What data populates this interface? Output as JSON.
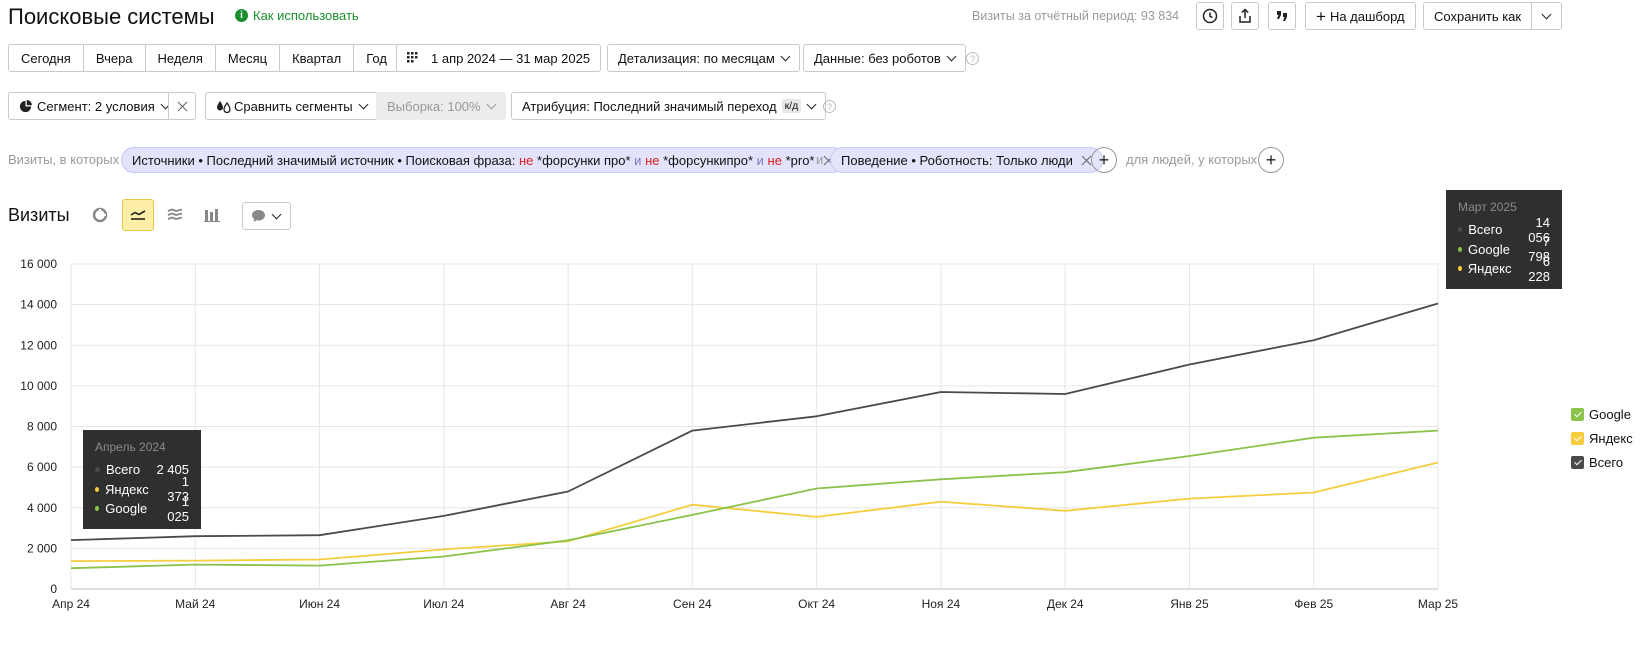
{
  "header": {
    "title": "Поисковые системы",
    "how_to_use": "Как использовать",
    "visits_period_label": "Визиты за отчётный период:",
    "visits_period_value": "93 834",
    "dashboard_button": "На дашборд",
    "save_as_button": "Сохранить как"
  },
  "period": {
    "tabs": [
      "Сегодня",
      "Вчера",
      "Неделя",
      "Месяц",
      "Квартал",
      "Год"
    ],
    "date_range": "1 апр 2024 — 31 мар 2025",
    "detalization": "Детализация: по месяцам",
    "data_filter": "Данные: без роботов"
  },
  "segments": {
    "segment": "Сегмент: 2 условия",
    "compare": "Сравнить сегменты",
    "sample": "Выборка: 100%",
    "attribution": "Атрибуция: Последний значимый переход",
    "attribution_badge": "к/д"
  },
  "filters": {
    "prefix": "Визиты, в которых",
    "pill1": {
      "part1": "Источники • Последний значимый источник • Поисковая фраза:",
      "ne1": "не",
      "v1": "*форсунки про*",
      "and1": "и",
      "ne2": "не",
      "v2": "*форсункипро*",
      "and2": "и",
      "ne3": "не",
      "v3": "*pro*"
    },
    "and_word": "и",
    "pill2": "Поведение • Роботность: Только люди",
    "people_suffix": "для людей, у которых"
  },
  "chart_section": {
    "title": "Визиты"
  },
  "tooltips": {
    "left": {
      "title": "Апрель 2024",
      "rows": [
        {
          "name": "Всего",
          "value": "2 405"
        },
        {
          "name": "Яндекс",
          "value": "1 373"
        },
        {
          "name": "Google",
          "value": "1 025"
        }
      ]
    },
    "right": {
      "title": "Март 2025",
      "rows": [
        {
          "name": "Всего",
          "value": "14 056"
        },
        {
          "name": "Google",
          "value": "7 798"
        },
        {
          "name": "Яндекс",
          "value": "6 228"
        }
      ]
    }
  },
  "colors": {
    "total": "#4a4a4a",
    "google": "#8bc34a",
    "yandex": "#f6cd3f",
    "active_icon_bg": "#fdeea8"
  },
  "chart_data": {
    "type": "line",
    "categories": [
      "Апр 24",
      "Май 24",
      "Июн 24",
      "Июл 24",
      "Авг 24",
      "Сен 24",
      "Окт 24",
      "Ноя 24",
      "Дек 24",
      "Янв 25",
      "Фев 25",
      "Мар 25"
    ],
    "ylim": [
      0,
      16000
    ],
    "yticks": [
      "0",
      "2 000",
      "4 000",
      "6 000",
      "8 000",
      "10 000",
      "12 000",
      "14 000",
      "16 000"
    ],
    "grid": true,
    "legend_position": "right",
    "series": [
      {
        "name": "Всего",
        "values": [
          2405,
          2600,
          2650,
          3600,
          4800,
          7800,
          8500,
          9700,
          9600,
          11050,
          12250,
          14056
        ]
      },
      {
        "name": "Google",
        "values": [
          1025,
          1200,
          1150,
          1600,
          2400,
          3650,
          4950,
          5400,
          5750,
          6550,
          7450,
          7798
        ]
      },
      {
        "name": "Яндекс",
        "values": [
          1373,
          1400,
          1450,
          1950,
          2350,
          4150,
          3550,
          4300,
          3850,
          4450,
          4750,
          6228
        ]
      }
    ],
    "legend": [
      "Google",
      "Яндекс",
      "Всего"
    ]
  }
}
